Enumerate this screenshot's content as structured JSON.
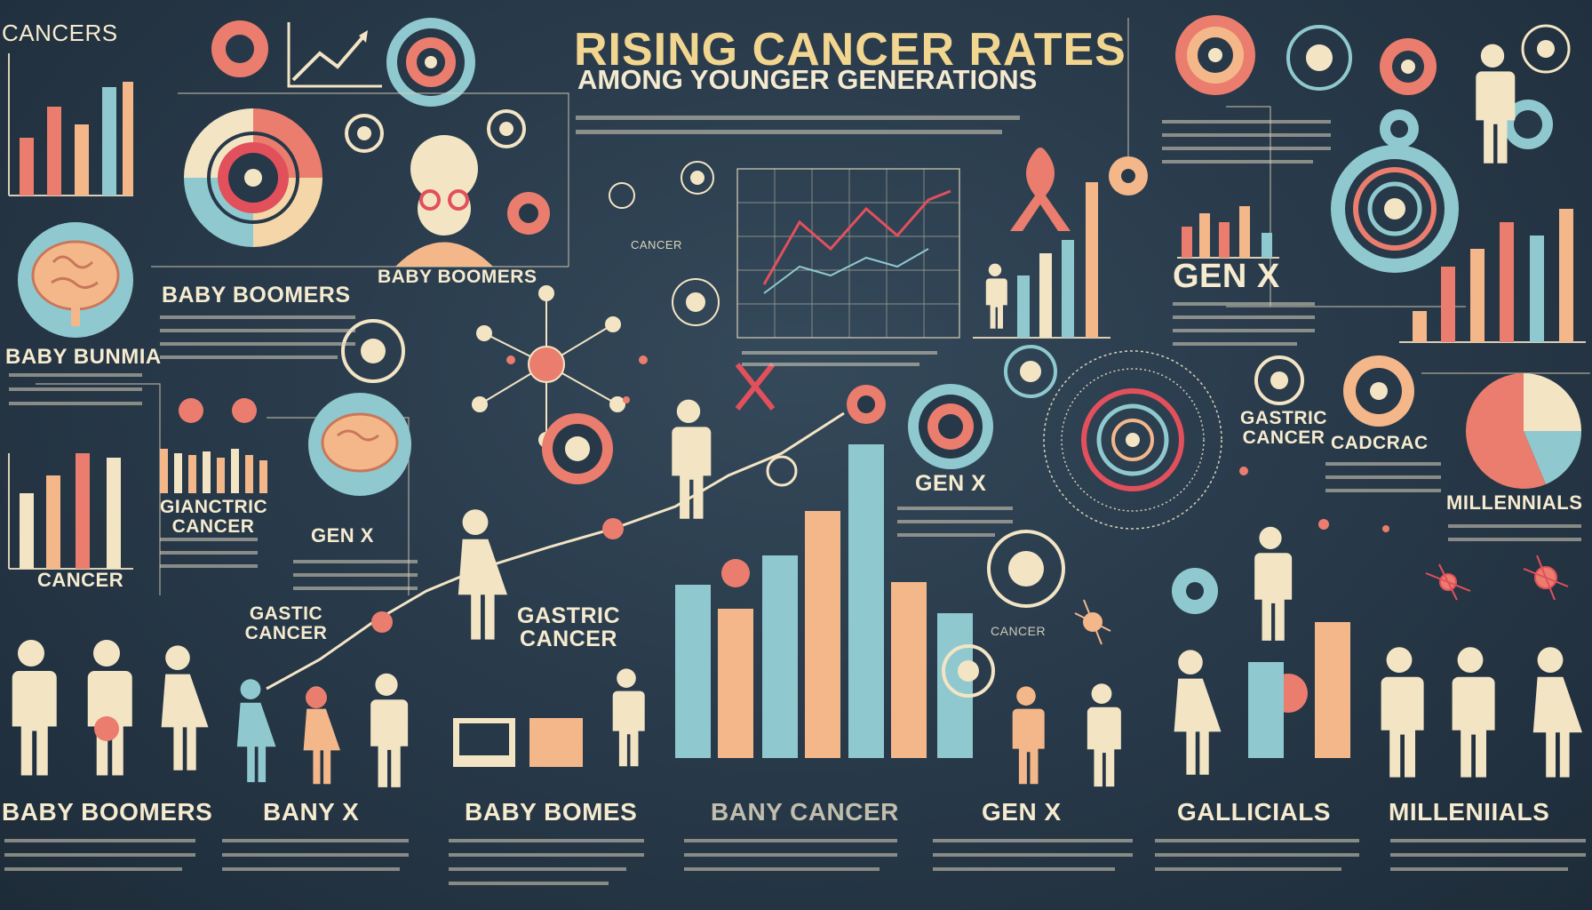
{
  "header": {
    "title_line1": "RISING CANCER RATES",
    "title_line2": "AMONG YOUNGER GENERATIONS"
  },
  "labels": {
    "top_left": "CANCERS",
    "boomers_left_panel": "BABY BOOMERS",
    "boomers_portrait": "BABY BOOMERS",
    "baby_bunmia": "BABY BUNMIA",
    "gianctric_cancer": "GIANCTRIC CANCER",
    "gen_x_brain": "GEN X",
    "cancer_left_bars": "CANCER",
    "gastic_cancer": "GASTIC CANCER",
    "gastric_cancer_center": "GASTRIC CANCER",
    "gen_x_right_upper": "GEN X",
    "gen_x_middle": "GEN X",
    "gastric_cancer_right": "GASTRIC CANCER",
    "cadcrac": "CADCRAC",
    "millennials_pie": "MILLENNIALS",
    "cancer_small": "CANCER",
    "cancer_chart_small": "CANCER"
  },
  "bottom_labels": [
    "BABY BOOMERS",
    "BANY X",
    "BABY BOMES",
    "BANY CANCER",
    "GEN X",
    "GALLICIALS",
    "MILLENIIALS"
  ],
  "colors": {
    "background": "#273848",
    "cream": "#f3e4c4",
    "coral": "#ea7d6d",
    "peach": "#f4b78a",
    "teal": "#8fc9cf",
    "yellow": "#f2d68f",
    "red": "#e2505c"
  },
  "icons": [
    "ribbon-icon",
    "brain-icon",
    "person-icon",
    "target-icon",
    "molecule-icon",
    "pie-icon",
    "line-chart-icon"
  ]
}
